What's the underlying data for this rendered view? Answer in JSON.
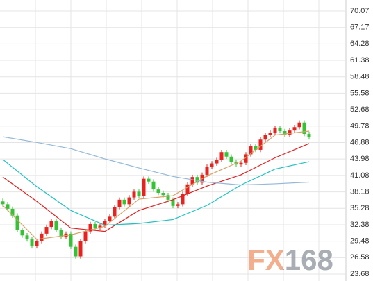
{
  "chart_data": {
    "type": "candlestick",
    "ylim": [
      22.46,
      72.03
    ],
    "yticks": [
      23.68,
      26.58,
      29.48,
      32.38,
      35.28,
      38.18,
      41.08,
      43.98,
      46.88,
      49.78,
      52.68,
      55.58,
      58.48,
      61.38,
      64.28,
      67.17,
      70.07
    ],
    "grid": true,
    "up_color": "#e8221e",
    "down_color": "#35c335",
    "ohlc": [
      [
        36.5,
        37.0,
        35.6,
        36.0
      ],
      [
        36.0,
        36.4,
        34.8,
        35.2
      ],
      [
        35.2,
        35.6,
        33.6,
        34.0
      ],
      [
        34.0,
        34.4,
        31.1,
        31.5
      ],
      [
        31.5,
        31.9,
        30.1,
        30.5
      ],
      [
        30.5,
        30.9,
        29.4,
        29.8
      ],
      [
        29.8,
        30.2,
        28.2,
        28.6
      ],
      [
        28.6,
        29.9,
        28.2,
        29.5
      ],
      [
        29.5,
        31.2,
        29.1,
        30.8
      ],
      [
        30.8,
        32.4,
        30.4,
        32.0
      ],
      [
        32.0,
        33.4,
        31.6,
        33.0
      ],
      [
        33.0,
        33.4,
        31.1,
        31.5
      ],
      [
        31.5,
        31.9,
        29.8,
        30.2
      ],
      [
        30.2,
        31.2,
        29.8,
        30.8
      ],
      [
        30.8,
        31.2,
        28.1,
        28.5
      ],
      [
        28.5,
        28.9,
        26.4,
        26.8
      ],
      [
        26.8,
        29.9,
        26.4,
        29.5
      ],
      [
        29.5,
        31.6,
        29.1,
        31.2
      ],
      [
        31.2,
        32.9,
        30.8,
        32.5
      ],
      [
        32.5,
        32.9,
        31.4,
        31.8
      ],
      [
        31.8,
        32.6,
        31.4,
        32.2
      ],
      [
        32.2,
        33.4,
        31.8,
        33.0
      ],
      [
        33.0,
        34.2,
        32.6,
        33.8
      ],
      [
        33.8,
        35.9,
        33.4,
        35.5
      ],
      [
        35.5,
        37.2,
        35.1,
        36.8
      ],
      [
        36.8,
        37.2,
        35.6,
        36.0
      ],
      [
        36.0,
        37.6,
        35.6,
        37.2
      ],
      [
        37.2,
        38.6,
        36.8,
        38.2
      ],
      [
        38.2,
        38.6,
        37.1,
        37.5
      ],
      [
        37.5,
        40.9,
        37.1,
        40.5
      ],
      [
        40.5,
        40.9,
        39.6,
        40.0
      ],
      [
        40.0,
        40.4,
        38.2,
        38.6
      ],
      [
        38.6,
        39.0,
        37.6,
        38.0
      ],
      [
        38.0,
        38.4,
        37.2,
        37.6
      ],
      [
        37.6,
        38.0,
        36.4,
        36.8
      ],
      [
        36.8,
        37.2,
        35.3,
        35.7
      ],
      [
        35.7,
        36.4,
        35.3,
        36.0
      ],
      [
        36.0,
        38.2,
        35.6,
        37.8
      ],
      [
        37.8,
        39.9,
        37.4,
        39.5
      ],
      [
        39.5,
        41.2,
        39.1,
        40.8
      ],
      [
        40.8,
        41.2,
        39.4,
        39.8
      ],
      [
        39.8,
        41.6,
        39.4,
        41.2
      ],
      [
        41.2,
        43.0,
        40.8,
        42.6
      ],
      [
        42.6,
        43.6,
        42.2,
        43.2
      ],
      [
        43.2,
        44.2,
        42.8,
        43.8
      ],
      [
        43.8,
        45.6,
        43.4,
        45.2
      ],
      [
        45.2,
        45.6,
        44.0,
        44.4
      ],
      [
        44.4,
        44.8,
        43.1,
        43.5
      ],
      [
        43.5,
        43.9,
        42.6,
        43.0
      ],
      [
        43.0,
        43.7,
        42.6,
        43.3
      ],
      [
        43.3,
        45.2,
        42.9,
        44.8
      ],
      [
        44.8,
        46.6,
        44.4,
        46.2
      ],
      [
        46.2,
        46.6,
        45.2,
        45.6
      ],
      [
        45.6,
        47.8,
        45.2,
        47.4
      ],
      [
        47.4,
        48.6,
        47.0,
        48.2
      ],
      [
        48.2,
        49.0,
        47.8,
        48.6
      ],
      [
        48.6,
        49.8,
        48.2,
        49.4
      ],
      [
        49.4,
        49.8,
        48.5,
        48.9
      ],
      [
        48.9,
        49.3,
        47.9,
        48.3
      ],
      [
        48.3,
        49.4,
        47.9,
        49.0
      ],
      [
        49.0,
        50.0,
        48.6,
        49.6
      ],
      [
        49.6,
        50.8,
        49.2,
        50.4
      ],
      [
        50.4,
        50.8,
        48.0,
        48.4
      ],
      [
        48.4,
        48.8,
        47.4,
        47.8
      ]
    ],
    "series": [
      {
        "color": "#d9a066",
        "x": [
          0,
          7,
          14,
          21,
          28,
          35,
          42,
          49,
          56,
          63
        ],
        "values": [
          35.8,
          29.8,
          30.6,
          32.1,
          36.9,
          37.5,
          41.0,
          43.6,
          48.2,
          48.9
        ]
      },
      {
        "color": "#e02020",
        "x": [
          0,
          7,
          14,
          21,
          28,
          35,
          42,
          49,
          56,
          63
        ],
        "values": [
          40.8,
          36.5,
          31.8,
          31.2,
          34.9,
          36.8,
          39.2,
          41.2,
          44.2,
          46.7
        ]
      },
      {
        "color": "#1fc2c2",
        "x": [
          0,
          7,
          14,
          21,
          28,
          35,
          42,
          49,
          56,
          63
        ],
        "values": [
          43.9,
          39.1,
          34.9,
          32.3,
          32.6,
          33.3,
          35.8,
          39.4,
          42.2,
          43.5
        ]
      },
      {
        "color": "#93b8d8",
        "x": [
          0,
          7,
          14,
          21,
          28,
          35,
          42,
          49,
          56,
          63
        ],
        "values": [
          47.9,
          46.9,
          45.8,
          44.0,
          42.4,
          40.9,
          39.9,
          39.4,
          39.6,
          39.9
        ]
      }
    ],
    "watermark": "FX168"
  }
}
